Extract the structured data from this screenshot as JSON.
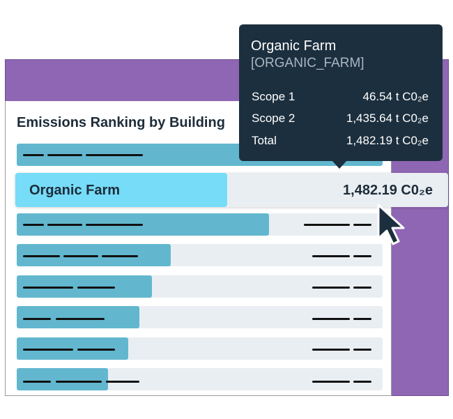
{
  "card": {
    "title": "Emissions Ranking by Building"
  },
  "highlight": {
    "name": "Organic Farm",
    "value": "1,482.19 C0₂e",
    "fraction": 0.49
  },
  "tooltip": {
    "title": "Organic Farm",
    "code": "[ORGANIC_FARM]",
    "rows": [
      {
        "label": "Scope 1",
        "value": "46.54 t C0₂e"
      },
      {
        "label": "Scope 2",
        "value": "1,435.64 t C0₂e"
      },
      {
        "label": "Total",
        "value": "1,482.19 t C0₂e"
      }
    ]
  },
  "ranking_bars_fraction": [
    1.0,
    0.69,
    0.42,
    0.37,
    0.335,
    0.305,
    0.25
  ],
  "icons": {
    "pointer": "arrow-pointer-icon"
  },
  "colors": {
    "panel": "#8f66b4",
    "bar": "#62b7cf",
    "highlight_bar": "#76dcf8",
    "track": "#e9eef2",
    "tooltip_bg": "#1c2f3e",
    "text": "#1d2c3a"
  }
}
